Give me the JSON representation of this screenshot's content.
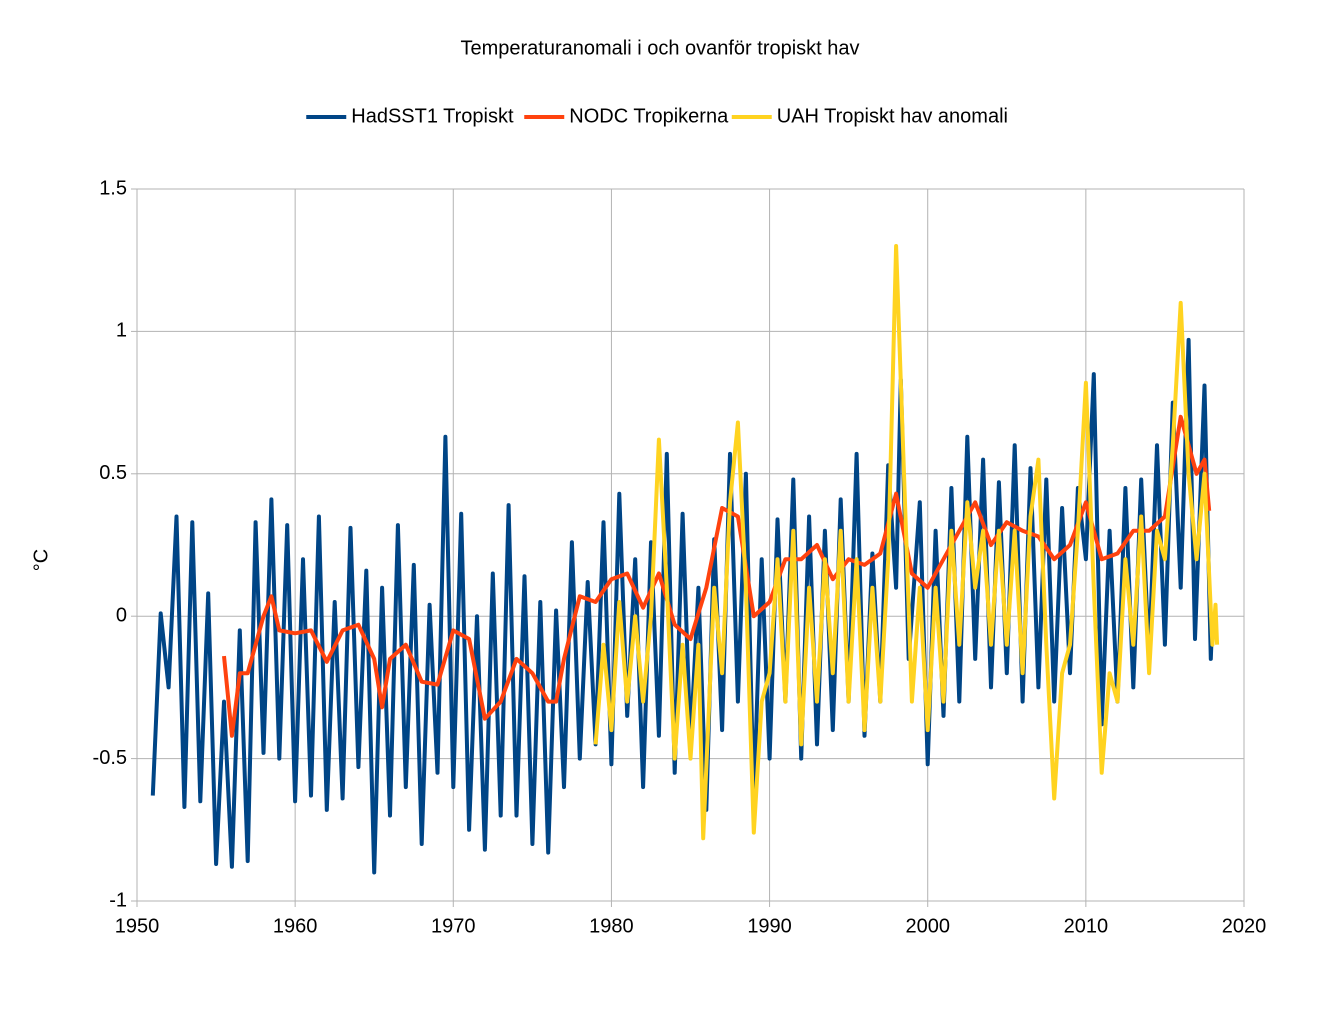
{
  "chart_data": {
    "type": "line",
    "title": "Temperaturanomali i och ovanför tropiskt hav",
    "ylabel": "°C",
    "xlim": [
      1950,
      2020
    ],
    "xticks": [
      1950,
      1960,
      1970,
      1980,
      1990,
      2000,
      2010,
      2020
    ],
    "ylim": [
      -1,
      1.5
    ],
    "yticks": [
      1.5,
      1,
      0.5,
      0,
      -0.5,
      -1
    ],
    "grid": true,
    "legend": "top",
    "series": [
      {
        "name": "HadSST1 Tropiskt",
        "color": "#004586",
        "x": [
          1951,
          1951.5,
          1952,
          1952.5,
          1953,
          1953.5,
          1954,
          1954.5,
          1955,
          1955.5,
          1956,
          1956.5,
          1957,
          1957.5,
          1958,
          1958.5,
          1959,
          1959.5,
          1960,
          1960.5,
          1961,
          1961.5,
          1962,
          1962.5,
          1963,
          1963.5,
          1964,
          1964.5,
          1965,
          1965.5,
          1966,
          1966.5,
          1967,
          1967.5,
          1968,
          1968.5,
          1969,
          1969.5,
          1970,
          1970.5,
          1971,
          1971.5,
          1972,
          1972.5,
          1973,
          1973.5,
          1974,
          1974.5,
          1975,
          1975.5,
          1976,
          1976.5,
          1977,
          1977.5,
          1978,
          1978.5,
          1979,
          1979.5,
          1980,
          1980.5,
          1981,
          1981.5,
          1982,
          1982.5,
          1983,
          1983.5,
          1984,
          1984.5,
          1985,
          1985.5,
          1986,
          1986.5,
          1987,
          1987.5,
          1988,
          1988.5,
          1989,
          1989.5,
          1990,
          1990.5,
          1991,
          1991.5,
          1992,
          1992.5,
          1993,
          1993.5,
          1994,
          1994.5,
          1995,
          1995.5,
          1996,
          1996.5,
          1997,
          1997.5,
          1998,
          1998.3,
          1998.8,
          1999.5,
          2000,
          2000.5,
          2001,
          2001.5,
          2002,
          2002.5,
          2003,
          2003.5,
          2004,
          2004.5,
          2005,
          2005.5,
          2006,
          2006.5,
          2007,
          2007.5,
          2008,
          2008.5,
          2009,
          2009.5,
          2010,
          2010.5,
          2011,
          2011.5,
          2012,
          2012.5,
          2013,
          2013.5,
          2014,
          2014.5,
          2015,
          2015.5,
          2016,
          2016.5,
          2016.9,
          2017.5,
          2017.9,
          2018
        ],
        "values": [
          -0.63,
          0.01,
          -0.25,
          0.35,
          -0.67,
          0.33,
          -0.65,
          0.08,
          -0.87,
          -0.3,
          -0.88,
          -0.05,
          -0.86,
          0.33,
          -0.48,
          0.41,
          -0.5,
          0.32,
          -0.65,
          0.2,
          -0.63,
          0.35,
          -0.68,
          0.05,
          -0.64,
          0.31,
          -0.53,
          0.16,
          -0.9,
          0.1,
          -0.7,
          0.32,
          -0.6,
          0.18,
          -0.8,
          0.04,
          -0.55,
          0.63,
          -0.6,
          0.36,
          -0.75,
          0.0,
          -0.82,
          0.15,
          -0.7,
          0.39,
          -0.7,
          0.14,
          -0.8,
          0.05,
          -0.83,
          0.02,
          -0.6,
          0.26,
          -0.5,
          0.12,
          -0.45,
          0.33,
          -0.52,
          0.43,
          -0.35,
          0.2,
          -0.6,
          0.26,
          -0.42,
          0.57,
          -0.55,
          0.36,
          -0.45,
          0.1,
          -0.68,
          0.27,
          -0.4,
          0.57,
          -0.3,
          0.5,
          -0.65,
          0.2,
          -0.5,
          0.34,
          -0.3,
          0.48,
          -0.5,
          0.35,
          -0.45,
          0.3,
          -0.4,
          0.41,
          -0.3,
          0.57,
          -0.42,
          0.22,
          -0.3,
          0.53,
          0.1,
          0.83,
          -0.15,
          0.4,
          -0.52,
          0.3,
          -0.35,
          0.45,
          -0.3,
          0.63,
          -0.15,
          0.55,
          -0.25,
          0.47,
          -0.2,
          0.6,
          -0.3,
          0.52,
          -0.25,
          0.48,
          -0.3,
          0.38,
          -0.2,
          0.45,
          0.2,
          0.85,
          -0.38,
          0.3,
          -0.3,
          0.45,
          -0.25,
          0.48,
          -0.15,
          0.6,
          -0.1,
          0.75,
          0.1,
          0.97,
          -0.08,
          0.81,
          -0.15,
          0.0
        ]
      },
      {
        "name": "NODC Tropikerna",
        "color": "#ff420e",
        "x": [
          1955.5,
          1956,
          1956.5,
          1957,
          1957.5,
          1958,
          1958.5,
          1959,
          1960,
          1961,
          1962,
          1963,
          1964,
          1965,
          1965.5,
          1966,
          1967,
          1968,
          1969,
          1970,
          1971,
          1972,
          1973,
          1974,
          1975,
          1976,
          1976.5,
          1977,
          1978,
          1979,
          1980,
          1981,
          1982,
          1983,
          1984,
          1985,
          1986,
          1987,
          1988,
          1989,
          1990,
          1991,
          1992,
          1993,
          1994,
          1995,
          1996,
          1997,
          1998,
          1999,
          2000,
          2001,
          2002,
          2003,
          2004,
          2005,
          2006,
          2007,
          2008,
          2009,
          2010,
          2011,
          2012,
          2013,
          2014,
          2015,
          2016,
          2017,
          2017.5,
          2017.8
        ],
        "values": [
          -0.14,
          -0.42,
          -0.2,
          -0.2,
          -0.1,
          0.0,
          0.07,
          -0.05,
          -0.06,
          -0.05,
          -0.16,
          -0.05,
          -0.03,
          -0.15,
          -0.32,
          -0.15,
          -0.1,
          -0.23,
          -0.24,
          -0.05,
          -0.08,
          -0.36,
          -0.3,
          -0.15,
          -0.2,
          -0.3,
          -0.3,
          -0.15,
          0.07,
          0.05,
          0.13,
          0.15,
          0.03,
          0.15,
          -0.03,
          -0.08,
          0.1,
          0.38,
          0.35,
          0.0,
          0.05,
          0.2,
          0.2,
          0.25,
          0.13,
          0.2,
          0.18,
          0.22,
          0.43,
          0.15,
          0.1,
          0.2,
          0.3,
          0.4,
          0.25,
          0.33,
          0.3,
          0.28,
          0.2,
          0.25,
          0.4,
          0.2,
          0.22,
          0.3,
          0.3,
          0.35,
          0.7,
          0.5,
          0.55,
          0.37
        ]
      },
      {
        "name": "UAH Tropiskt hav anomali",
        "color": "#ffd320",
        "x": [
          1979,
          1979.5,
          1980,
          1980.5,
          1981,
          1981.5,
          1982,
          1982.5,
          1983,
          1983.5,
          1984,
          1984.5,
          1985,
          1985.5,
          1985.8,
          1986.5,
          1987,
          1987.5,
          1988,
          1988.5,
          1989,
          1989.5,
          1990,
          1990.5,
          1991,
          1991.5,
          1992,
          1992.5,
          1993,
          1993.5,
          1994,
          1994.5,
          1995,
          1995.5,
          1996,
          1996.5,
          1997,
          1997.5,
          1998,
          1998.5,
          1999,
          1999.5,
          2000,
          2000.5,
          2001,
          2001.5,
          2002,
          2002.5,
          2003,
          2003.5,
          2004,
          2004.5,
          2005,
          2005.5,
          2006,
          2006.5,
          2007,
          2007.5,
          2008,
          2008.5,
          2009,
          2009.5,
          2010,
          2010.5,
          2011,
          2011.5,
          2012,
          2012.5,
          2013,
          2013.5,
          2014,
          2014.5,
          2015,
          2015.5,
          2016,
          2016.5,
          2017,
          2017.5,
          2018,
          2018.2,
          2018.3
        ],
        "values": [
          -0.45,
          -0.1,
          -0.4,
          0.05,
          -0.3,
          0.0,
          -0.3,
          0.0,
          0.62,
          0.1,
          -0.5,
          -0.1,
          -0.5,
          -0.1,
          -0.78,
          0.1,
          -0.2,
          0.4,
          0.68,
          0.1,
          -0.76,
          -0.3,
          -0.2,
          0.2,
          -0.3,
          0.3,
          -0.45,
          0.1,
          -0.3,
          0.2,
          -0.2,
          0.3,
          -0.3,
          0.2,
          -0.4,
          0.1,
          -0.3,
          0.2,
          1.3,
          0.5,
          -0.3,
          0.1,
          -0.4,
          0.1,
          -0.3,
          0.3,
          -0.1,
          0.4,
          0.1,
          0.3,
          -0.1,
          0.3,
          -0.1,
          0.3,
          -0.2,
          0.35,
          0.55,
          -0.1,
          -0.64,
          -0.2,
          -0.1,
          0.3,
          0.82,
          0.1,
          -0.55,
          -0.2,
          -0.3,
          0.2,
          -0.1,
          0.35,
          -0.2,
          0.3,
          0.2,
          0.6,
          1.1,
          0.5,
          0.2,
          0.5,
          -0.1,
          0.04,
          -0.1
        ]
      }
    ]
  }
}
